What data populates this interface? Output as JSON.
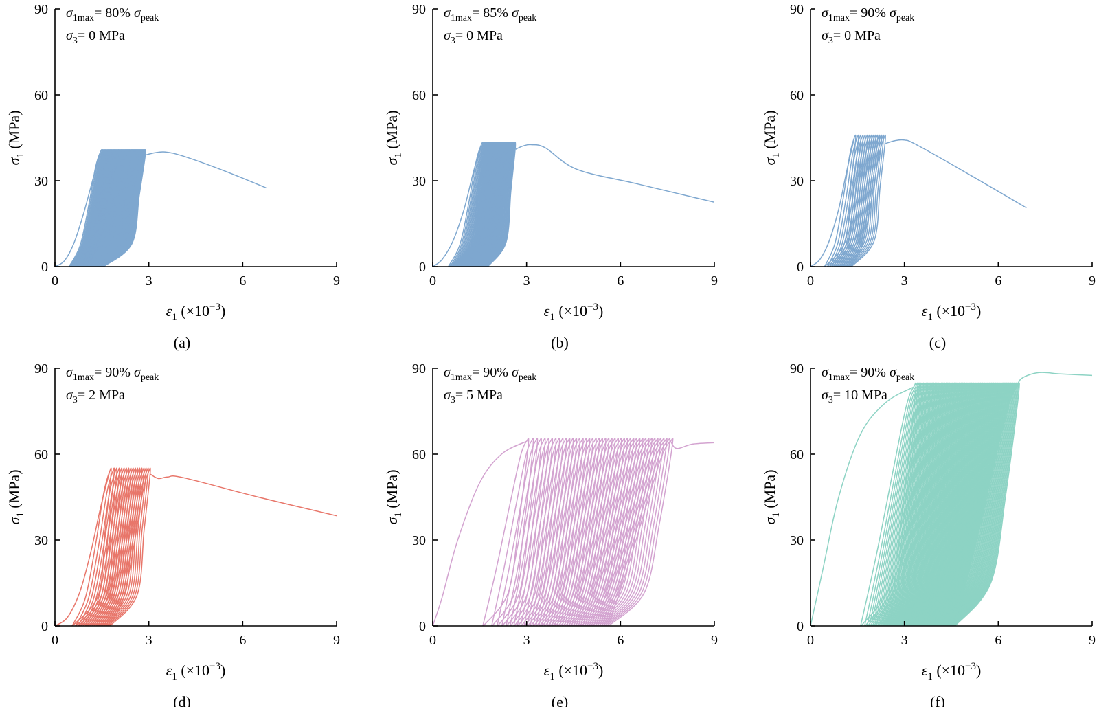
{
  "figure": {
    "panels": [
      {
        "caption": "(a)",
        "color": "#7ea7cf",
        "annotation": {
          "line1": {
            "sym": "σ",
            "sub": "1max",
            "mid": "= 80% ",
            "sym2": "σ",
            "sub2": "peak"
          },
          "line2": {
            "sym": "σ",
            "sub": "3",
            "rest": "= 0 MPa"
          }
        }
      },
      {
        "caption": "(b)",
        "color": "#7ea7cf",
        "annotation": {
          "line1": {
            "sym": "σ",
            "sub": "1max",
            "mid": "= 85% ",
            "sym2": "σ",
            "sub2": "peak"
          },
          "line2": {
            "sym": "σ",
            "sub": "3",
            "rest": "= 0 MPa"
          }
        }
      },
      {
        "caption": "(c)",
        "color": "#7ea7cf",
        "annotation": {
          "line1": {
            "sym": "σ",
            "sub": "1max",
            "mid": "= 90% ",
            "sym2": "σ",
            "sub2": "peak"
          },
          "line2": {
            "sym": "σ",
            "sub": "3",
            "rest": "= 0 MPa"
          }
        }
      },
      {
        "caption": "(d)",
        "color": "#e8766a",
        "annotation": {
          "line1": {
            "sym": "σ",
            "sub": "1max",
            "mid": "= 90% ",
            "sym2": "σ",
            "sub2": "peak"
          },
          "line2": {
            "sym": "σ",
            "sub": "3",
            "rest": "= 2 MPa"
          }
        }
      },
      {
        "caption": "(e)",
        "color": "#d3a3d0",
        "annotation": {
          "line1": {
            "sym": "σ",
            "sub": "1max",
            "mid": "= 90% ",
            "sym2": "σ",
            "sub2": "peak"
          },
          "line2": {
            "sym": "σ",
            "sub": "3",
            "rest": "= 5 MPa"
          }
        }
      },
      {
        "caption": "(f)",
        "color": "#8dd3c4",
        "annotation": {
          "line1": {
            "sym": "σ",
            "sub": "1max",
            "mid": "= 90% ",
            "sym2": "σ",
            "sub2": "peak"
          },
          "line2": {
            "sym": "σ",
            "sub": "3",
            "rest": "= 10 MPa"
          }
        }
      }
    ]
  },
  "chart_data": [
    {
      "type": "line",
      "panel": "(a)",
      "xlabel": {
        "sym": "ε",
        "sub": "1",
        "unit": " (×10",
        "exp": "−3",
        "close": ")"
      },
      "ylabel": {
        "sym": "σ",
        "sub": "1",
        "unit": " (MPa)"
      },
      "xlim": [
        0,
        9
      ],
      "ylim": [
        0,
        90
      ],
      "xticks": [
        "0",
        "3",
        "6",
        "9"
      ],
      "yticks": [
        "0",
        "30",
        "60",
        "90"
      ],
      "cyclic": {
        "peak": 40,
        "cycles": 60,
        "xmin_start": 0.45,
        "xmin_end": 1.55,
        "xtop_start": 1.45,
        "xtop_end": 2.85
      },
      "first_loading": [
        [
          0,
          0
        ],
        [
          0.3,
          2
        ],
        [
          0.6,
          8
        ],
        [
          0.9,
          18
        ],
        [
          1.2,
          30
        ],
        [
          1.45,
          40
        ]
      ],
      "post_peak": [
        [
          2.9,
          39
        ],
        [
          3.2,
          39.8
        ],
        [
          3.55,
          40
        ],
        [
          4.1,
          38.6
        ],
        [
          5.4,
          33.5
        ],
        [
          6.75,
          27.5
        ]
      ]
    },
    {
      "type": "line",
      "panel": "(b)",
      "xlabel": {
        "sym": "ε",
        "sub": "1",
        "unit": " (×10",
        "exp": "−3",
        "close": ")"
      },
      "ylabel": {
        "sym": "σ",
        "sub": "1",
        "unit": " (MPa)"
      },
      "xlim": [
        0,
        9
      ],
      "ylim": [
        0,
        90
      ],
      "xticks": [
        "0",
        "3",
        "6",
        "9"
      ],
      "yticks": [
        "0",
        "30",
        "60",
        "90"
      ],
      "cyclic": {
        "peak": 42.5,
        "cycles": 40,
        "xmin_start": 0.5,
        "xmin_end": 1.75,
        "xtop_start": 1.55,
        "xtop_end": 2.6
      },
      "first_loading": [
        [
          0,
          0
        ],
        [
          0.3,
          2.5
        ],
        [
          0.65,
          9
        ],
        [
          1.0,
          20
        ],
        [
          1.3,
          33
        ],
        [
          1.55,
          42.5
        ]
      ],
      "post_peak": [
        [
          2.65,
          41
        ],
        [
          2.9,
          42.2
        ],
        [
          3.15,
          42.6
        ],
        [
          3.6,
          41.5
        ],
        [
          4.6,
          34
        ],
        [
          6.5,
          29
        ],
        [
          9,
          22.5
        ]
      ]
    },
    {
      "type": "line",
      "panel": "(c)",
      "xlabel": {
        "sym": "ε",
        "sub": "1",
        "unit": " (×10",
        "exp": "−3",
        "close": ")"
      },
      "ylabel": {
        "sym": "σ",
        "sub": "1",
        "unit": " (MPa)"
      },
      "xlim": [
        0,
        9
      ],
      "ylim": [
        0,
        90
      ],
      "xticks": [
        "0",
        "3",
        "6",
        "9"
      ],
      "yticks": [
        "0",
        "30",
        "60",
        "90"
      ],
      "cyclic": {
        "peak": 45,
        "cycles": 15,
        "xmin_start": 0.45,
        "xmin_end": 1.3,
        "xtop_start": 1.4,
        "xtop_end": 2.35
      },
      "first_loading": [
        [
          0,
          0
        ],
        [
          0.3,
          2.5
        ],
        [
          0.6,
          9
        ],
        [
          0.9,
          20
        ],
        [
          1.15,
          33
        ],
        [
          1.4,
          45
        ]
      ],
      "post_peak": [
        [
          2.4,
          43
        ],
        [
          2.7,
          44
        ],
        [
          3.0,
          44.2
        ],
        [
          3.4,
          42.5
        ],
        [
          5.1,
          32
        ],
        [
          6.9,
          20.5
        ]
      ]
    },
    {
      "type": "line",
      "panel": "(d)",
      "xlabel": {
        "sym": "ε",
        "sub": "1",
        "unit": " (×10",
        "exp": "−3",
        "close": ")"
      },
      "ylabel": {
        "sym": "σ",
        "sub": "1",
        "unit": " (MPa)"
      },
      "xlim": [
        0,
        9
      ],
      "ylim": [
        0,
        90
      ],
      "xticks": [
        "0",
        "3",
        "6",
        "9"
      ],
      "yticks": [
        "0",
        "30",
        "60",
        "90"
      ],
      "cyclic": {
        "peak": 54,
        "cycles": 18,
        "xmin_start": 0.55,
        "xmin_end": 1.75,
        "xtop_start": 1.75,
        "xtop_end": 3.0
      },
      "first_loading": [
        [
          0,
          0
        ],
        [
          0.4,
          3
        ],
        [
          0.8,
          12
        ],
        [
          1.15,
          26
        ],
        [
          1.45,
          41
        ],
        [
          1.75,
          54
        ]
      ],
      "post_peak": [
        [
          3.05,
          53
        ],
        [
          3.3,
          51.5
        ],
        [
          3.6,
          52
        ],
        [
          4.1,
          51.8
        ],
        [
          6.5,
          45
        ],
        [
          9,
          38.5
        ]
      ]
    },
    {
      "type": "line",
      "panel": "(e)",
      "xlabel": {
        "sym": "ε",
        "sub": "1",
        "unit": " (×10",
        "exp": "−3",
        "close": ")"
      },
      "ylabel": {
        "sym": "σ",
        "sub": "1",
        "unit": " (MPa)"
      },
      "xlim": [
        0,
        9
      ],
      "ylim": [
        0,
        90
      ],
      "xticks": [
        "0",
        "3",
        "6",
        "9"
      ],
      "yticks": [
        "0",
        "30",
        "60",
        "90"
      ],
      "cyclic": {
        "peak": 64.5,
        "cycles": 45,
        "xmin_start": 1.6,
        "xmin_end": 5.6,
        "xtop_start": 3.0,
        "xtop_end": 7.6,
        "loop_style": "wide"
      },
      "first_loading": [
        [
          0,
          0
        ],
        [
          0.3,
          10
        ],
        [
          0.8,
          30
        ],
        [
          1.5,
          50
        ],
        [
          2.2,
          60
        ],
        [
          3.0,
          64.5
        ]
      ],
      "post_peak": [
        [
          7.6,
          64.5
        ],
        [
          7.8,
          62
        ],
        [
          8.3,
          63.5
        ],
        [
          9,
          64
        ]
      ]
    },
    {
      "type": "line",
      "panel": "(f)",
      "xlabel": {
        "sym": "ε",
        "sub": "1",
        "unit": " (×10",
        "exp": "−3",
        "close": ")"
      },
      "ylabel": {
        "sym": "σ",
        "sub": "1",
        "unit": " (MPa)"
      },
      "xlim": [
        0,
        9
      ],
      "ylim": [
        0,
        90
      ],
      "xticks": [
        "0",
        "3",
        "6",
        "9"
      ],
      "yticks": [
        "0",
        "30",
        "60",
        "90"
      ],
      "cyclic": {
        "peak": 83.5,
        "cycles": 90,
        "xmin_start": 1.6,
        "xmin_end": 4.6,
        "xtop_start": 3.3,
        "xtop_end": 6.6,
        "loop_style": "wide"
      },
      "first_loading": [
        [
          0,
          0
        ],
        [
          0.4,
          20
        ],
        [
          0.9,
          45
        ],
        [
          1.6,
          67
        ],
        [
          2.4,
          78
        ],
        [
          3.3,
          83.5
        ]
      ],
      "post_peak": [
        [
          6.6,
          83.5
        ],
        [
          6.75,
          86.5
        ],
        [
          7.3,
          88.5
        ],
        [
          8,
          88
        ],
        [
          9,
          87.5
        ]
      ]
    }
  ]
}
